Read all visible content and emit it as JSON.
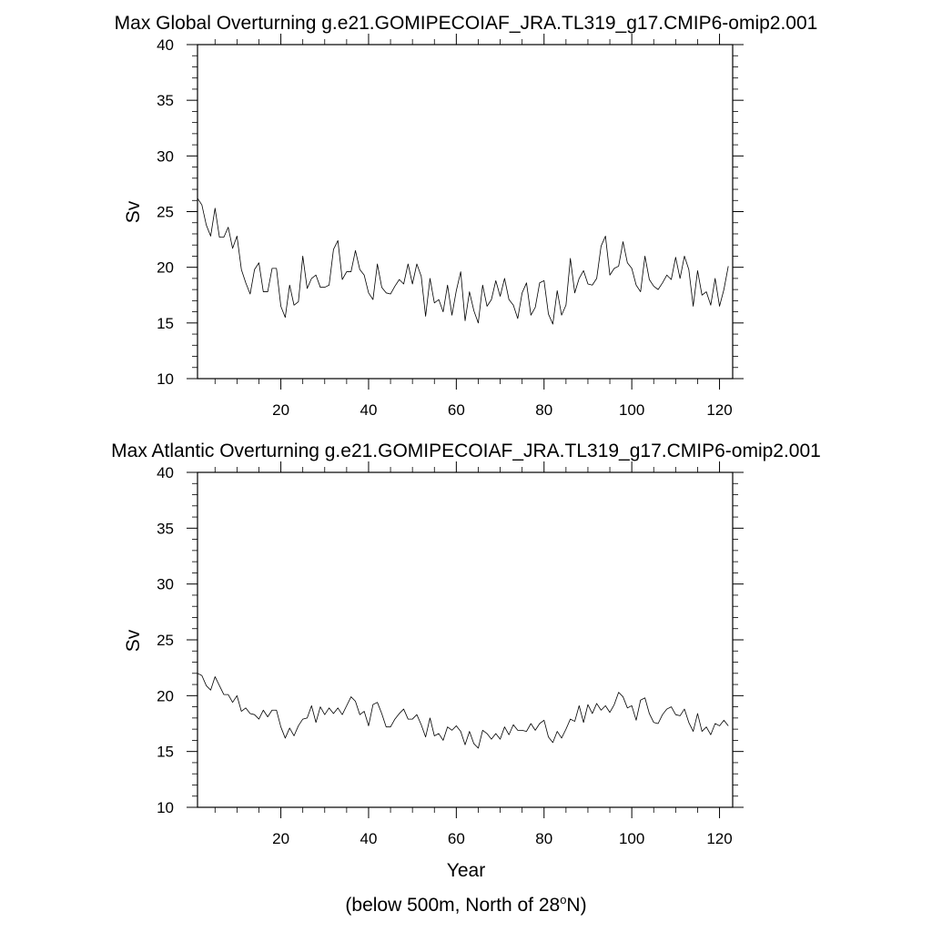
{
  "figure": {
    "footnote": {
      "prefix": "(below 500m, North of 28",
      "superscript": "o",
      "suffix": "N)"
    }
  },
  "chart_data": [
    {
      "type": "line",
      "title": "Max Global Overturning g.e21.GOMIPECOIAF_JRA.TL319_g17.CMIP6-omip2.001",
      "xlabel": "",
      "ylabel": "Sv",
      "xlim": [
        1,
        123
      ],
      "ylim": [
        10,
        40
      ],
      "xticks": [
        20,
        40,
        60,
        80,
        100,
        120
      ],
      "yticks": [
        10,
        15,
        20,
        25,
        30,
        35,
        40
      ],
      "grid": false,
      "series": [
        {
          "x_start": 1,
          "x_step": 1,
          "color": "#000000",
          "values": [
            26.2,
            25.6,
            23.8,
            22.8,
            25.3,
            22.7,
            22.7,
            23.6,
            21.7,
            22.8,
            19.8,
            18.6,
            17.6,
            19.8,
            20.4,
            17.8,
            17.8,
            19.9,
            19.9,
            16.5,
            15.5,
            18.4,
            16.6,
            16.9,
            21.0,
            18.1,
            19.0,
            19.3,
            18.2,
            18.2,
            18.4,
            21.6,
            22.4,
            18.9,
            19.6,
            19.6,
            21.5,
            19.8,
            19.3,
            17.7,
            17.1,
            20.3,
            18.2,
            17.7,
            17.6,
            18.3,
            18.9,
            18.5,
            20.3,
            18.5,
            20.3,
            19.2,
            15.6,
            19.0,
            16.8,
            17.1,
            16.0,
            18.4,
            15.7,
            17.9,
            19.6,
            15.2,
            17.8,
            16.1,
            15.0,
            18.4,
            16.5,
            17.1,
            18.8,
            17.4,
            19.0,
            17.1,
            16.6,
            15.4,
            17.7,
            18.6,
            15.7,
            16.4,
            18.6,
            18.8,
            15.8,
            14.9,
            17.9,
            15.7,
            16.6,
            20.8,
            17.7,
            19.0,
            19.7,
            18.5,
            18.4,
            19.0,
            21.9,
            22.8,
            19.3,
            19.9,
            20.1,
            22.3,
            20.4,
            19.9,
            18.4,
            17.8,
            21.0,
            18.9,
            18.3,
            18.0,
            18.6,
            19.3,
            18.9,
            20.9,
            19.0,
            21.0,
            19.8,
            16.5,
            19.7,
            17.5,
            17.8,
            16.6,
            19.0,
            16.5,
            18.0,
            20.1
          ]
        }
      ]
    },
    {
      "type": "line",
      "title": "Max Atlantic Overturning g.e21.GOMIPECOIAF_JRA.TL319_g17.CMIP6-omip2.001",
      "xlabel": "Year",
      "ylabel": "Sv",
      "xlim": [
        1,
        123
      ],
      "ylim": [
        10,
        40
      ],
      "xticks": [
        20,
        40,
        60,
        80,
        100,
        120
      ],
      "yticks": [
        10,
        15,
        20,
        25,
        30,
        35,
        40
      ],
      "grid": false,
      "series": [
        {
          "x_start": 1,
          "x_step": 1,
          "color": "#000000",
          "values": [
            22.0,
            21.8,
            20.9,
            20.5,
            21.7,
            20.9,
            20.1,
            20.1,
            19.4,
            20.0,
            18.6,
            18.9,
            18.4,
            18.3,
            17.9,
            18.7,
            18.1,
            18.7,
            18.7,
            17.2,
            16.2,
            17.1,
            16.4,
            17.3,
            17.9,
            18.0,
            19.1,
            17.6,
            19.0,
            18.3,
            18.9,
            18.4,
            18.9,
            18.3,
            19.1,
            19.9,
            19.5,
            18.3,
            18.6,
            17.3,
            19.2,
            19.4,
            18.4,
            17.2,
            17.2,
            17.9,
            18.4,
            18.8,
            17.9,
            17.9,
            18.3,
            17.4,
            16.3,
            18.0,
            16.4,
            16.6,
            16.0,
            17.2,
            16.9,
            17.3,
            16.8,
            15.6,
            16.8,
            15.7,
            15.3,
            16.9,
            16.6,
            16.1,
            16.6,
            16.1,
            17.2,
            16.5,
            17.4,
            16.9,
            16.9,
            16.8,
            17.5,
            16.9,
            17.5,
            17.8,
            16.3,
            15.8,
            16.8,
            16.2,
            17.0,
            17.9,
            17.7,
            19.1,
            17.6,
            19.2,
            18.4,
            19.3,
            18.7,
            19.1,
            18.5,
            19.2,
            20.3,
            19.9,
            18.9,
            19.1,
            17.8,
            19.6,
            19.8,
            18.4,
            17.6,
            17.5,
            18.3,
            18.8,
            19.0,
            18.3,
            18.2,
            18.8,
            17.6,
            16.8,
            18.4,
            16.8,
            17.2,
            16.5,
            17.5,
            17.3,
            17.8,
            17.3
          ]
        }
      ]
    }
  ]
}
